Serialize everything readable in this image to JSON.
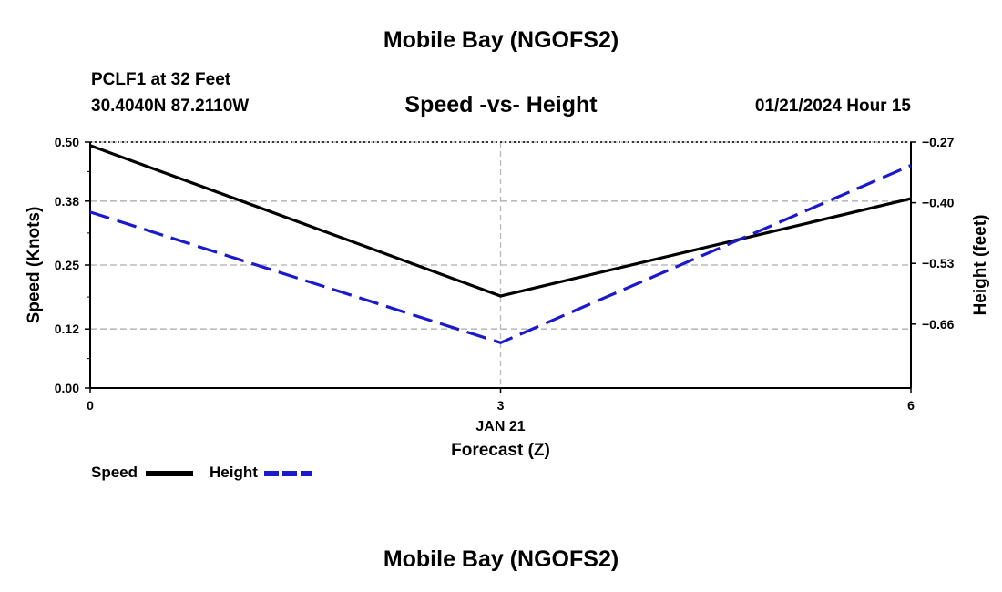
{
  "header": {
    "title": "Mobile Bay (NGOFS2)",
    "station": "PCLF1 at 32 Feet",
    "coords": "30.4040N  87.2110W",
    "datetime": "01/21/2024 Hour 15"
  },
  "footer": {
    "title": "Mobile Bay (NGOFS2)"
  },
  "colors": {
    "speed": "#000000",
    "height": "#1a1acc",
    "grid": "#bbbbbb"
  },
  "chart_data": {
    "type": "line",
    "title": "Speed -vs- Height",
    "x": [
      0,
      3,
      6
    ],
    "x_ticks": [
      "0",
      "3",
      "6"
    ],
    "x_date_label": "JAN 21",
    "xlabel": "Forecast (Z)",
    "ylabel": "Speed (Knots)",
    "y2label": "Height (feet)",
    "ylim": [
      0,
      0.5
    ],
    "y_ticks": [
      "0.00",
      "0.12",
      "0.25",
      "0.38",
      "0.50"
    ],
    "y2lim": [
      -0.797,
      -0.27
    ],
    "y2_ticks": [
      "-0.27",
      "-0.40",
      "-0.53",
      "-0.66"
    ],
    "grid": true,
    "legend_position": "bottom-left",
    "series": [
      {
        "name": "Speed",
        "axis": "left",
        "style": "solid",
        "values": [
          0.493,
          0.187,
          0.385
        ]
      },
      {
        "name": "Height",
        "axis": "right",
        "style": "dashed",
        "values": [
          -0.42,
          -0.7,
          -0.32
        ]
      }
    ]
  }
}
